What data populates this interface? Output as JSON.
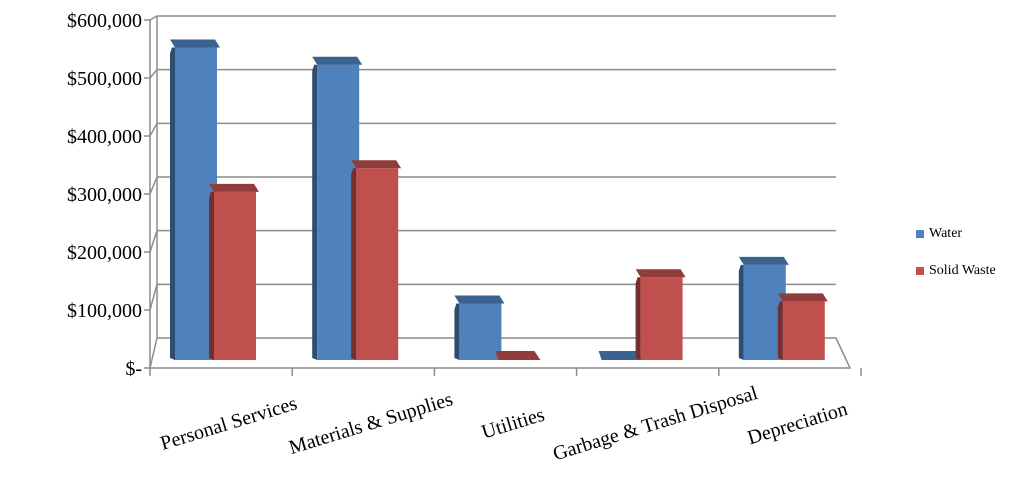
{
  "chart_data": {
    "type": "bar",
    "categories": [
      "Personal Services",
      "Materials & Supplies",
      "Utilities",
      "Garbage & Trash Disposal",
      "Depreciation"
    ],
    "series": [
      {
        "name": "Water",
        "color": "#4F81BD",
        "values": [
          545000,
          513000,
          68000,
          0,
          140000
        ]
      },
      {
        "name": "Solid Waste",
        "color": "#C0504D",
        "values": [
          276000,
          320000,
          0,
          117000,
          72000
        ]
      }
    ],
    "yticks": [
      "$-",
      "$100,000",
      "$200,000",
      "$300,000",
      "$400,000",
      "$500,000",
      "$600,000"
    ],
    "ylim": [
      0,
      600000
    ],
    "grid": true,
    "legend": "right",
    "title": "",
    "xlabel": "",
    "ylabel": ""
  }
}
